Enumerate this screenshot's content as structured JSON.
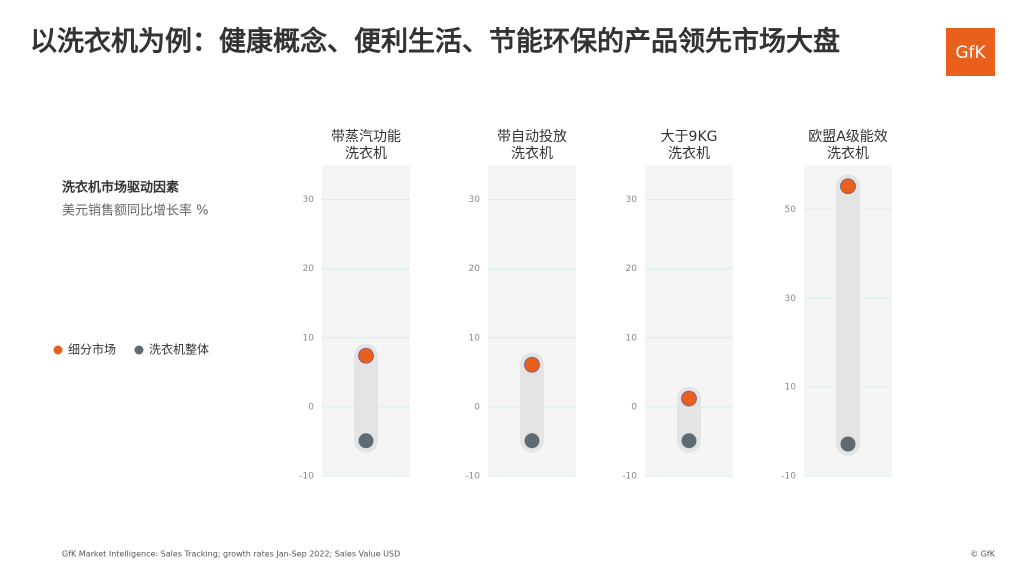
{
  "header": {
    "title": "以洗衣机为例：健康概念、便利生活、节能环保的产品领先市场大盘",
    "logo": "GfK"
  },
  "intro": {
    "heading": "洗衣机市场驱动因素",
    "subheading": "美元销售额同比增长率 %"
  },
  "legend": [
    {
      "name": "细分市场",
      "color": "#e8601c"
    },
    {
      "name": "洗衣机整体",
      "color": "#5f6a72"
    }
  ],
  "chart_data": [
    {
      "type": "dumbbell",
      "title": [
        "带蒸汽功能",
        "洗衣机"
      ],
      "values": [
        7.4,
        -4.9
      ],
      "ylim": [
        -10,
        35
      ],
      "yticks": [
        -10,
        0,
        10,
        20,
        30
      ],
      "grid": true
    },
    {
      "type": "dumbbell",
      "title": [
        "带自动投放",
        "洗衣机"
      ],
      "values": [
        6.1,
        -4.9
      ],
      "ylim": [
        -10,
        35
      ],
      "yticks": [
        -10,
        0,
        10,
        20,
        30
      ],
      "grid": true
    },
    {
      "type": "dumbbell",
      "title": [
        "大于9KG",
        "洗衣机"
      ],
      "values": [
        1.2,
        -4.9
      ],
      "ylim": [
        -10,
        35
      ],
      "yticks": [
        -10,
        0,
        10,
        20,
        30
      ],
      "grid": true
    },
    {
      "type": "dumbbell",
      "title": [
        "欧盟A级能效",
        "洗衣机"
      ],
      "values": [
        55.2,
        -2.8
      ],
      "ylim": [
        -10,
        60
      ],
      "yticks": [
        -10,
        10,
        30,
        50
      ],
      "grid": true
    }
  ],
  "footer": {
    "source": "GfK Market Intelligence: Sales Tracking; growth rates Jan-Sep 2022; Sales Value USD",
    "copyright": "© GfK"
  }
}
